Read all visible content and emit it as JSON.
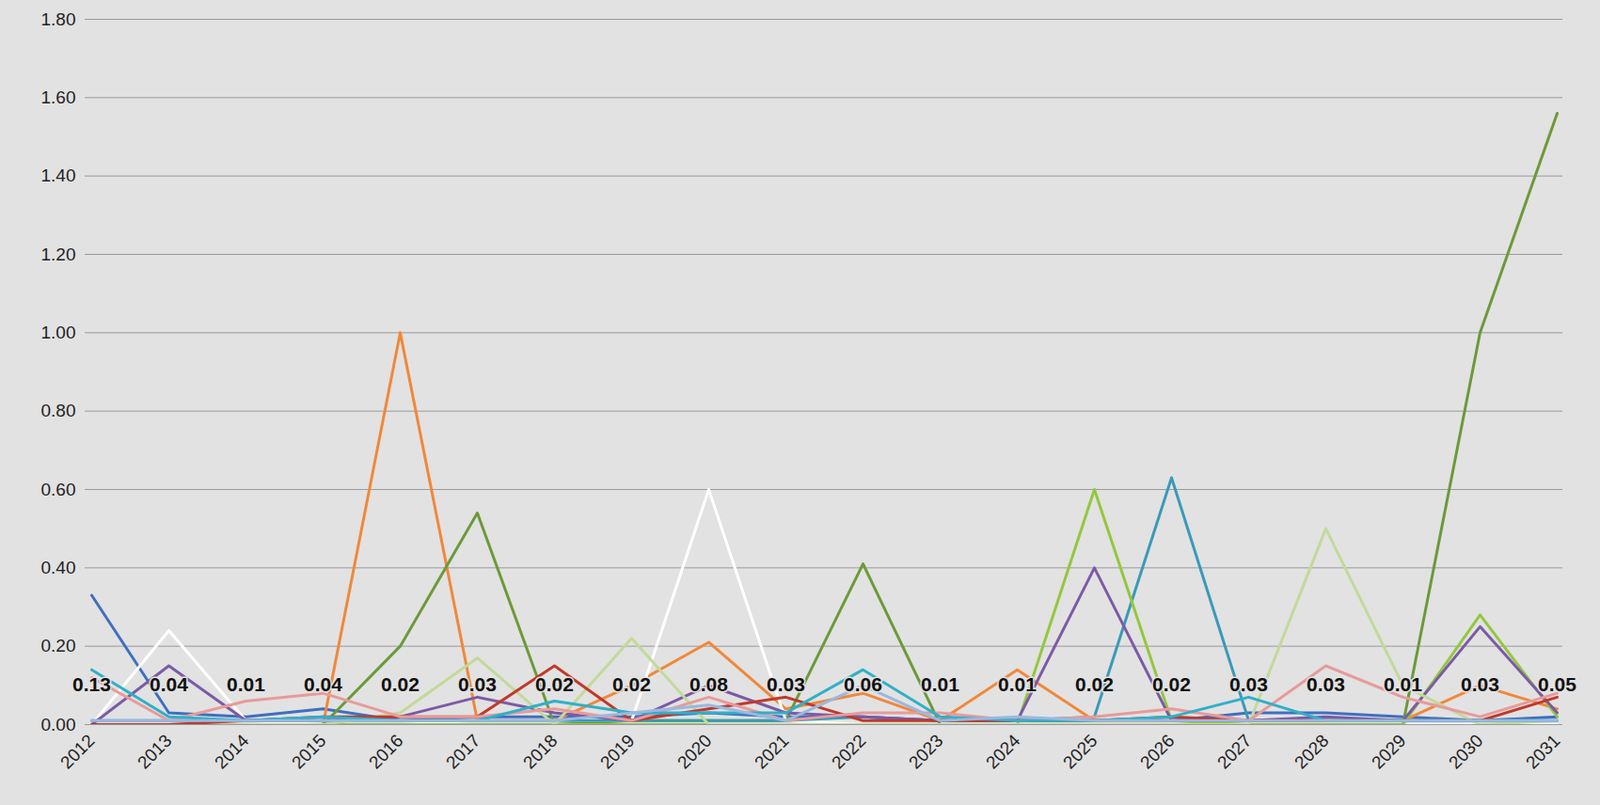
{
  "chart_data": {
    "type": "line",
    "categories": [
      "2012",
      "2013",
      "2014",
      "2015",
      "2016",
      "2017",
      "2018",
      "2019",
      "2020",
      "2021",
      "2022",
      "2023",
      "2024",
      "2025",
      "2026",
      "2027",
      "2028",
      "2029",
      "2030",
      "2031"
    ],
    "ylim": [
      0,
      1.8
    ],
    "yticks": [
      {
        "value": 0,
        "label": "0.00"
      },
      {
        "value": 0.2,
        "label": "0.20"
      },
      {
        "value": 0.4,
        "label": "0.40"
      },
      {
        "value": 0.6,
        "label": "0.60"
      },
      {
        "value": 0.8,
        "label": "0.80"
      },
      {
        "value": 1.0,
        "label": "1.00"
      },
      {
        "value": 1.2,
        "label": "1.20"
      },
      {
        "value": 1.4,
        "label": "1.40"
      },
      {
        "value": 1.6,
        "label": "1.60"
      },
      {
        "value": 1.8,
        "label": "1.80"
      }
    ],
    "grid": true,
    "annotations": [
      "0.13",
      "0.04",
      "0.01",
      "0.04",
      "0.02",
      "0.03",
      "0.02",
      "0.02",
      "0.08",
      "0.03",
      "0.06",
      "0.01",
      "0.01",
      "0.02",
      "0.02",
      "0.03",
      "0.03",
      "0.01",
      "0.03",
      "0.05"
    ],
    "series": [
      {
        "color": "#3f6fbf",
        "values": [
          0.33,
          0.03,
          0.02,
          0.04,
          0.01,
          0.02,
          0.02,
          0.02,
          0.03,
          0.02,
          0.02,
          0.01,
          0.01,
          0.01,
          0.01,
          0.03,
          0.03,
          0.02,
          0.01,
          0.02
        ]
      },
      {
        "color": "#f0883a",
        "values": [
          0,
          0,
          0,
          0,
          1.0,
          0.01,
          0.01,
          0.1,
          0.21,
          0.04,
          0.08,
          0.01,
          0.14,
          0.01,
          0.01,
          0.01,
          0.01,
          0.01,
          0.1,
          0.04
        ]
      },
      {
        "color": "#6b9a3a",
        "values": [
          0,
          0,
          0,
          0,
          0.2,
          0.54,
          0,
          0.01,
          0.01,
          0.01,
          0.41,
          0,
          0,
          0,
          0,
          0,
          0,
          0,
          1.0,
          1.56
        ]
      },
      {
        "color": "#ffffff",
        "values": [
          0,
          0.24,
          0.01,
          0,
          0,
          0.01,
          0.01,
          0.01,
          0.6,
          0.01,
          0,
          0,
          0,
          0,
          0,
          0,
          0,
          0,
          0,
          0
        ]
      },
      {
        "color": "#3a9ab8",
        "values": [
          0.01,
          0.01,
          0.01,
          0.01,
          0.01,
          0.01,
          0.01,
          0.01,
          0.01,
          0.01,
          0.02,
          0.01,
          0.01,
          0.02,
          0.63,
          0.01,
          0.01,
          0.01,
          0.01,
          0.01
        ]
      },
      {
        "color": "#92c83e",
        "values": [
          0,
          0,
          0,
          0,
          0,
          0,
          0,
          0,
          0,
          0,
          0,
          0,
          0,
          0.6,
          0.01,
          0,
          0,
          0,
          0.28,
          0.02
        ]
      },
      {
        "color": "#7c5aa6",
        "values": [
          0,
          0.15,
          0.01,
          0.01,
          0.02,
          0.07,
          0.03,
          0.01,
          0.1,
          0.03,
          0.02,
          0.01,
          0.01,
          0.4,
          0.01,
          0.01,
          0.02,
          0.01,
          0.25,
          0.03
        ]
      },
      {
        "color": "#c3d99a",
        "values": [
          0,
          0,
          0,
          0,
          0.03,
          0.17,
          0,
          0.22,
          0,
          0,
          0,
          0,
          0,
          0,
          0,
          0,
          0.5,
          0.1,
          0,
          0.01
        ]
      },
      {
        "color": "#c0392b",
        "values": [
          0,
          0,
          0.01,
          0.02,
          0.02,
          0.02,
          0.15,
          0.01,
          0.04,
          0.07,
          0.01,
          0.01,
          0.01,
          0.01,
          0.02,
          0.01,
          0.01,
          0.01,
          0.01,
          0.07
        ]
      },
      {
        "color": "#e89a9a",
        "values": [
          0.12,
          0.01,
          0.06,
          0.08,
          0.02,
          0.02,
          0.04,
          0.01,
          0.07,
          0.01,
          0.03,
          0.03,
          0.01,
          0.02,
          0.04,
          0.01,
          0.15,
          0.07,
          0.02,
          0.08
        ]
      },
      {
        "color": "#2fb0c8",
        "values": [
          0.14,
          0.02,
          0.01,
          0.02,
          0.01,
          0.01,
          0.06,
          0.03,
          0.03,
          0.03,
          0.14,
          0.02,
          0.01,
          0.01,
          0.02,
          0.07,
          0.01,
          0.01,
          0.01,
          0.01
        ]
      },
      {
        "color": "#9ab8e0",
        "values": [
          0.01,
          0.01,
          0.01,
          0.01,
          0.01,
          0.01,
          0.01,
          0.03,
          0.05,
          0.01,
          0.1,
          0.01,
          0.02,
          0.01,
          0.01,
          0.01,
          0.01,
          0.01,
          0.01,
          0.01
        ]
      }
    ]
  }
}
